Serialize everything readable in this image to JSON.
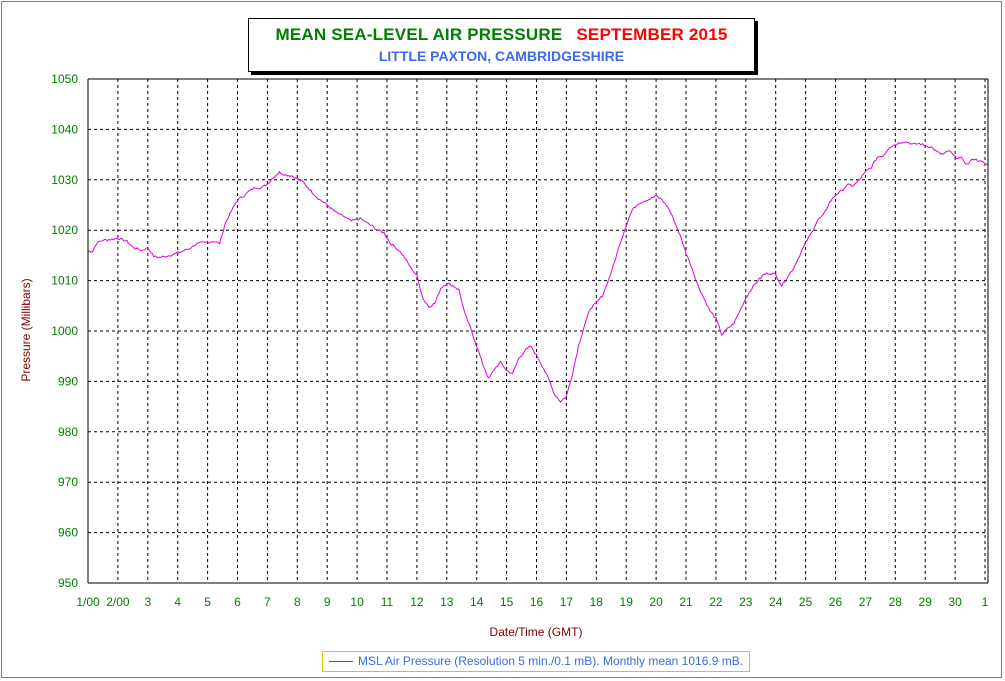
{
  "title": {
    "main": "MEAN SEA-LEVEL AIR PRESSURE",
    "month": "SEPTEMBER 2015",
    "subtitle": "LITTLE PAXTON, CAMBRIDGESHIRE"
  },
  "legend": {
    "label": "MSL Air Pressure (Resolution 5 min./0.1 mB). Monthly mean 1016.9 mB."
  },
  "colors": {
    "series": "#e000e0",
    "tick_labels": "#008000",
    "axis_titles": "#800000",
    "title_green": "#008000",
    "title_red": "#ff0000",
    "subtitle_blue": "#3d6ae6"
  },
  "chart_data": {
    "type": "line",
    "title": "MEAN SEA-LEVEL AIR PRESSURE SEPTEMBER 2015",
    "subtitle": "LITTLE PAXTON, CAMBRIDGESHIRE",
    "xlabel": "Date/Time (GMT)",
    "ylabel": "Pressure (Millibars)",
    "ylim": [
      950,
      1050
    ],
    "xlim": [
      1.0,
      31.1
    ],
    "y_ticks": [
      950,
      960,
      970,
      980,
      990,
      1000,
      1010,
      1020,
      1030,
      1040,
      1050
    ],
    "x_ticks": [
      {
        "x": 1,
        "label": "1/00"
      },
      {
        "x": 2,
        "label": "2/00"
      },
      {
        "x": 3,
        "label": "3"
      },
      {
        "x": 4,
        "label": "4"
      },
      {
        "x": 5,
        "label": "5"
      },
      {
        "x": 6,
        "label": "6"
      },
      {
        "x": 7,
        "label": "7"
      },
      {
        "x": 8,
        "label": "8"
      },
      {
        "x": 9,
        "label": "9"
      },
      {
        "x": 10,
        "label": "10"
      },
      {
        "x": 11,
        "label": "11"
      },
      {
        "x": 12,
        "label": "12"
      },
      {
        "x": 13,
        "label": "13"
      },
      {
        "x": 14,
        "label": "14"
      },
      {
        "x": 15,
        "label": "15"
      },
      {
        "x": 16,
        "label": "16"
      },
      {
        "x": 17,
        "label": "17"
      },
      {
        "x": 18,
        "label": "18"
      },
      {
        "x": 19,
        "label": "19"
      },
      {
        "x": 20,
        "label": "20"
      },
      {
        "x": 21,
        "label": "21"
      },
      {
        "x": 22,
        "label": "22"
      },
      {
        "x": 23,
        "label": "23"
      },
      {
        "x": 24,
        "label": "24"
      },
      {
        "x": 25,
        "label": "25"
      },
      {
        "x": 26,
        "label": "26"
      },
      {
        "x": 27,
        "label": "27"
      },
      {
        "x": 28,
        "label": "28"
      },
      {
        "x": 29,
        "label": "29"
      },
      {
        "x": 30,
        "label": "30"
      },
      {
        "x": 31,
        "label": "1"
      }
    ],
    "grid": true,
    "legend_position": "bottom-center",
    "series": [
      {
        "name": "MSL Air Pressure (Resolution 5 min./0.1 mB). Monthly mean 1016.9 mB.",
        "x": [
          1.0,
          1.15,
          1.3,
          1.5,
          1.8,
          2.0,
          2.3,
          2.5,
          2.8,
          3.0,
          3.2,
          3.4,
          3.6,
          3.9,
          4.1,
          4.4,
          4.6,
          4.8,
          5.0,
          5.2,
          5.4,
          5.6,
          5.8,
          6.0,
          6.2,
          6.4,
          6.6,
          6.8,
          7.0,
          7.2,
          7.4,
          7.6,
          7.8,
          8.0,
          8.2,
          8.5,
          8.7,
          9.0,
          9.3,
          9.6,
          9.8,
          10.1,
          10.4,
          10.7,
          10.9,
          11.1,
          11.4,
          11.6,
          11.8,
          12.0,
          12.2,
          12.4,
          12.6,
          12.8,
          13.0,
          13.2,
          13.4,
          13.6,
          13.8,
          14.0,
          14.2,
          14.4,
          14.6,
          14.8,
          15.0,
          15.2,
          15.4,
          15.6,
          15.8,
          16.0,
          16.2,
          16.4,
          16.6,
          16.8,
          17.0,
          17.2,
          17.4,
          17.6,
          17.8,
          18.0,
          18.2,
          18.4,
          18.6,
          18.8,
          19.0,
          19.2,
          19.4,
          19.6,
          19.8,
          20.0,
          20.2,
          20.4,
          20.6,
          20.8,
          21.0,
          21.2,
          21.4,
          21.6,
          21.8,
          22.0,
          22.2,
          22.4,
          22.6,
          22.8,
          23.0,
          23.2,
          23.4,
          23.6,
          23.8,
          24.0,
          24.2,
          24.4,
          24.6,
          24.8,
          25.0,
          25.2,
          25.4,
          25.6,
          25.8,
          26.0,
          26.2,
          26.4,
          26.6,
          26.8,
          27.0,
          27.2,
          27.4,
          27.6,
          27.8,
          28.0,
          28.2,
          28.4,
          28.6,
          28.8,
          29.0,
          29.2,
          29.4,
          29.6,
          29.8,
          30.0,
          30.2,
          30.4,
          30.6,
          30.8,
          31.0,
          31.1
        ],
        "values": [
          1015.8,
          1015.8,
          1017.5,
          1018.0,
          1018.2,
          1018.4,
          1017.8,
          1016.6,
          1016.0,
          1016.5,
          1014.8,
          1014.6,
          1014.8,
          1015.3,
          1015.7,
          1016.4,
          1017.2,
          1017.5,
          1017.6,
          1017.8,
          1017.4,
          1021.5,
          1023.8,
          1026.0,
          1026.8,
          1027.8,
          1028.5,
          1028.4,
          1029.2,
          1030.5,
          1031.5,
          1031.0,
          1030.8,
          1030.2,
          1029.5,
          1027.5,
          1026.3,
          1025.0,
          1023.5,
          1022.6,
          1021.8,
          1022.3,
          1021.2,
          1020.0,
          1019.5,
          1017.5,
          1016.0,
          1014.5,
          1012.5,
          1011.0,
          1006.5,
          1004.8,
          1005.5,
          1008.5,
          1009.5,
          1009.0,
          1008.2,
          1003.5,
          1000.5,
          997.0,
          993.5,
          990.5,
          992.5,
          993.8,
          992.2,
          991.5,
          994.5,
          996.0,
          997.0,
          995.2,
          993.0,
          990.5,
          987.5,
          986.0,
          987.0,
          991.5,
          997.0,
          1001.0,
          1004.5,
          1005.5,
          1007.0,
          1010.0,
          1013.5,
          1017.5,
          1021.0,
          1024.0,
          1025.3,
          1025.8,
          1026.2,
          1026.8,
          1026.0,
          1024.5,
          1022.0,
          1019.0,
          1015.5,
          1012.5,
          1009.0,
          1006.5,
          1004.0,
          1002.5,
          999.3,
          1000.5,
          1001.5,
          1004.0,
          1006.5,
          1008.5,
          1010.0,
          1011.2,
          1011.5,
          1011.2,
          1009.0,
          1010.8,
          1012.5,
          1015.0,
          1017.5,
          1019.5,
          1022.0,
          1023.0,
          1025.5,
          1027.0,
          1027.8,
          1029.0,
          1028.8,
          1030.0,
          1031.5,
          1032.5,
          1034.5,
          1034.8,
          1036.5,
          1037.0,
          1037.5,
          1037.5,
          1037.0,
          1037.2,
          1036.8,
          1036.5,
          1035.5,
          1035.0,
          1035.8,
          1034.5,
          1034.3,
          1033.0,
          1034.2,
          1033.8,
          1033.2,
          1033.0
        ]
      }
    ]
  }
}
